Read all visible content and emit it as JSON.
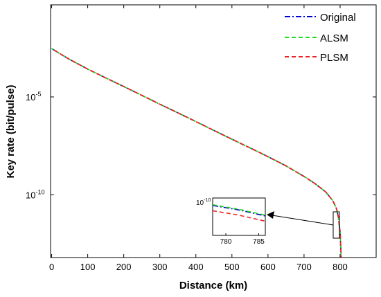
{
  "chart_data": {
    "type": "line",
    "xlabel": "Distance (km)",
    "ylabel": "Key rate (bit/pulse)",
    "yscale": "log",
    "xlim": [
      -3,
      900
    ],
    "ylim_log10": [
      -13.2,
      -0.3
    ],
    "grid": false,
    "legend_position": "top-right",
    "x_ticks": [
      0,
      100,
      200,
      300,
      400,
      500,
      600,
      700,
      800
    ],
    "x_tick_labels": [
      "0",
      "100",
      "200",
      "300",
      "400",
      "500",
      "600",
      "700",
      "800"
    ],
    "y_ticks_log10": [
      -5,
      -10
    ],
    "y_tick_labels": [
      {
        "base": "10",
        "exp": "-5"
      },
      {
        "base": "10",
        "exp": "-10"
      }
    ],
    "series": [
      {
        "name": "Original",
        "color": "#0000cc",
        "dash": "dashdot"
      },
      {
        "name": "ALSM",
        "color": "#22dd22",
        "dash": "dashed"
      },
      {
        "name": "PLSM",
        "color": "#ee2222",
        "dash": "dashed"
      }
    ],
    "x": [
      0,
      20,
      50,
      100,
      150,
      200,
      250,
      300,
      350,
      400,
      450,
      500,
      550,
      600,
      650,
      700,
      730,
      760,
      780,
      790,
      795,
      800,
      803
    ],
    "log10_y": [
      -2.53,
      -2.76,
      -3.09,
      -3.58,
      -4.03,
      -4.47,
      -4.92,
      -5.37,
      -5.81,
      -6.26,
      -6.71,
      -7.16,
      -7.6,
      -8.05,
      -8.52,
      -9.06,
      -9.42,
      -9.85,
      -10.3,
      -10.7,
      -11.1,
      -11.9,
      -13.2
    ],
    "inset": {
      "xlim": [
        778,
        786
      ],
      "x_ticks": [
        780,
        785
      ],
      "x_tick_labels": [
        "780",
        "785"
      ],
      "y_tick_label": {
        "base": "10",
        "exp": "-10"
      },
      "x": [
        778,
        780,
        782,
        784,
        786
      ],
      "log10_y_original": [
        -10.05,
        -10.08,
        -10.11,
        -10.15,
        -10.19
      ],
      "log10_y_alsm": [
        -10.04,
        -10.07,
        -10.1,
        -10.14,
        -10.18
      ],
      "log10_y_plsm": [
        -10.12,
        -10.15,
        -10.18,
        -10.22,
        -10.26
      ]
    }
  }
}
